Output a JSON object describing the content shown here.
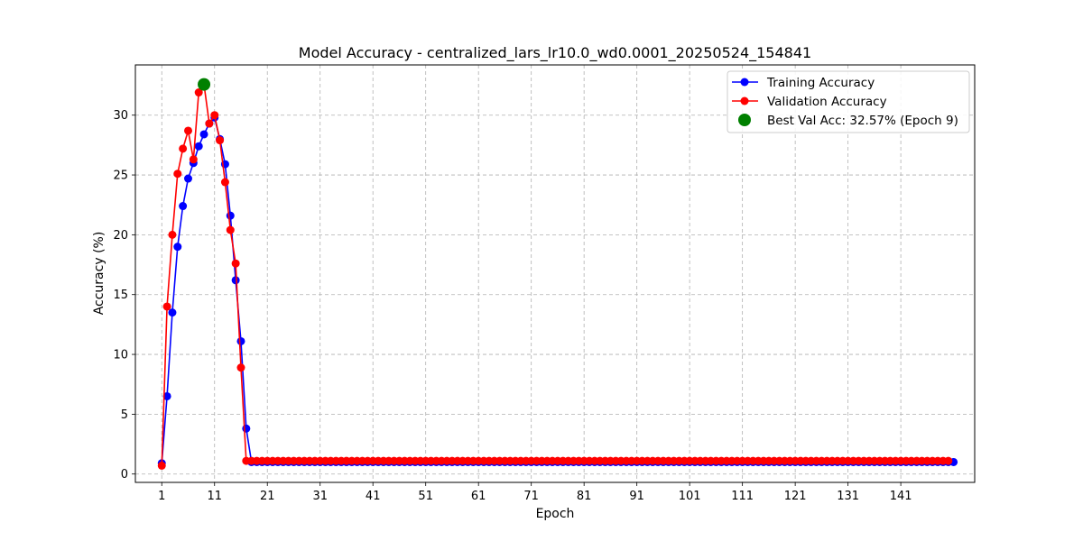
{
  "chart_data": {
    "type": "line",
    "title": "Model Accuracy - centralized_lars_lr10.0_wd0.0001_20250524_154841",
    "xlabel": "Epoch",
    "ylabel": "Accuracy (%)",
    "xlim": [
      -5,
      154
    ],
    "ylim": [
      -0.7,
      34.2
    ],
    "xticks": [
      1,
      11,
      21,
      31,
      41,
      51,
      61,
      71,
      81,
      91,
      101,
      111,
      121,
      131,
      141
    ],
    "yticks": [
      0,
      5,
      10,
      15,
      20,
      25,
      30
    ],
    "grid": true,
    "legend_position": "top-right",
    "series": [
      {
        "name": "Training Accuracy",
        "color": "#0000ff",
        "x_start": 0,
        "values": [
          0.9,
          6.5,
          13.5,
          19.0,
          22.4,
          24.7,
          26.0,
          27.4,
          28.4,
          29.3,
          29.8,
          28.0,
          25.9,
          21.6,
          16.2,
          11.1,
          3.8,
          1.0,
          1.0,
          1.0,
          1.0,
          1.0,
          1.0,
          1.0,
          1.0,
          1.0,
          1.0,
          1.0,
          1.0,
          1.0,
          1.0,
          1.0,
          1.0,
          1.0,
          1.0,
          1.0,
          1.0,
          1.0,
          1.0,
          1.0,
          1.0,
          1.0,
          1.0,
          1.0,
          1.0,
          1.0,
          1.0,
          1.0,
          1.0,
          1.0,
          1.0,
          1.0,
          1.0,
          1.0,
          1.0,
          1.0,
          1.0,
          1.0,
          1.0,
          1.0,
          1.0,
          1.0,
          1.0,
          1.0,
          1.0,
          1.0,
          1.0,
          1.0,
          1.0,
          1.0,
          1.0,
          1.0,
          1.0,
          1.0,
          1.0,
          1.0,
          1.0,
          1.0,
          1.0,
          1.0,
          1.0,
          1.0,
          1.0,
          1.0,
          1.0,
          1.0,
          1.0,
          1.0,
          1.0,
          1.0,
          1.0,
          1.0,
          1.0,
          1.0,
          1.0,
          1.0,
          1.0,
          1.0,
          1.0,
          1.0,
          1.0,
          1.0,
          1.0,
          1.0,
          1.0,
          1.0,
          1.0,
          1.0,
          1.0,
          1.0,
          1.0,
          1.0,
          1.0,
          1.0,
          1.0,
          1.0,
          1.0,
          1.0,
          1.0,
          1.0,
          1.0,
          1.0,
          1.0,
          1.0,
          1.0,
          1.0,
          1.0,
          1.0,
          1.0,
          1.0,
          1.0,
          1.0,
          1.0,
          1.0,
          1.0,
          1.0,
          1.0,
          1.0,
          1.0,
          1.0,
          1.0,
          1.0,
          1.0,
          1.0,
          1.0,
          1.0,
          1.0,
          1.0,
          1.0,
          1.0,
          1.0
        ]
      },
      {
        "name": "Validation Accuracy",
        "color": "#ff0000",
        "x_start": 0,
        "values": [
          0.7,
          14.0,
          20.0,
          25.1,
          27.2,
          28.7,
          26.3,
          31.9,
          32.57,
          29.3,
          30.0,
          27.9,
          24.4,
          20.4,
          17.6,
          8.9,
          1.1,
          1.1,
          1.1,
          1.1,
          1.1,
          1.1,
          1.1,
          1.1,
          1.1,
          1.1,
          1.1,
          1.1,
          1.1,
          1.1,
          1.1,
          1.1,
          1.1,
          1.1,
          1.1,
          1.1,
          1.1,
          1.1,
          1.1,
          1.1,
          1.1,
          1.1,
          1.1,
          1.1,
          1.1,
          1.1,
          1.1,
          1.1,
          1.1,
          1.1,
          1.1,
          1.1,
          1.1,
          1.1,
          1.1,
          1.1,
          1.1,
          1.1,
          1.1,
          1.1,
          1.1,
          1.1,
          1.1,
          1.1,
          1.1,
          1.1,
          1.1,
          1.1,
          1.1,
          1.1,
          1.1,
          1.1,
          1.1,
          1.1,
          1.1,
          1.1,
          1.1,
          1.1,
          1.1,
          1.1,
          1.1,
          1.1,
          1.1,
          1.1,
          1.1,
          1.1,
          1.1,
          1.1,
          1.1,
          1.1,
          1.1,
          1.1,
          1.1,
          1.1,
          1.1,
          1.1,
          1.1,
          1.1,
          1.1,
          1.1,
          1.1,
          1.1,
          1.1,
          1.1,
          1.1,
          1.1,
          1.1,
          1.1,
          1.1,
          1.1,
          1.1,
          1.1,
          1.1,
          1.1,
          1.1,
          1.1,
          1.1,
          1.1,
          1.1,
          1.1,
          1.1,
          1.1,
          1.1,
          1.1,
          1.1,
          1.1,
          1.1,
          1.1,
          1.1,
          1.1,
          1.1,
          1.1,
          1.1,
          1.1,
          1.1,
          1.1,
          1.1,
          1.1,
          1.1,
          1.1,
          1.1,
          1.1,
          1.1,
          1.1,
          1.1,
          1.1,
          1.1,
          1.1,
          1.1,
          1.1
        ]
      }
    ],
    "best_point": {
      "label": "Best Val Acc: 32.57% (Epoch 9)",
      "x": 8,
      "y": 32.57,
      "color": "#008000"
    }
  }
}
